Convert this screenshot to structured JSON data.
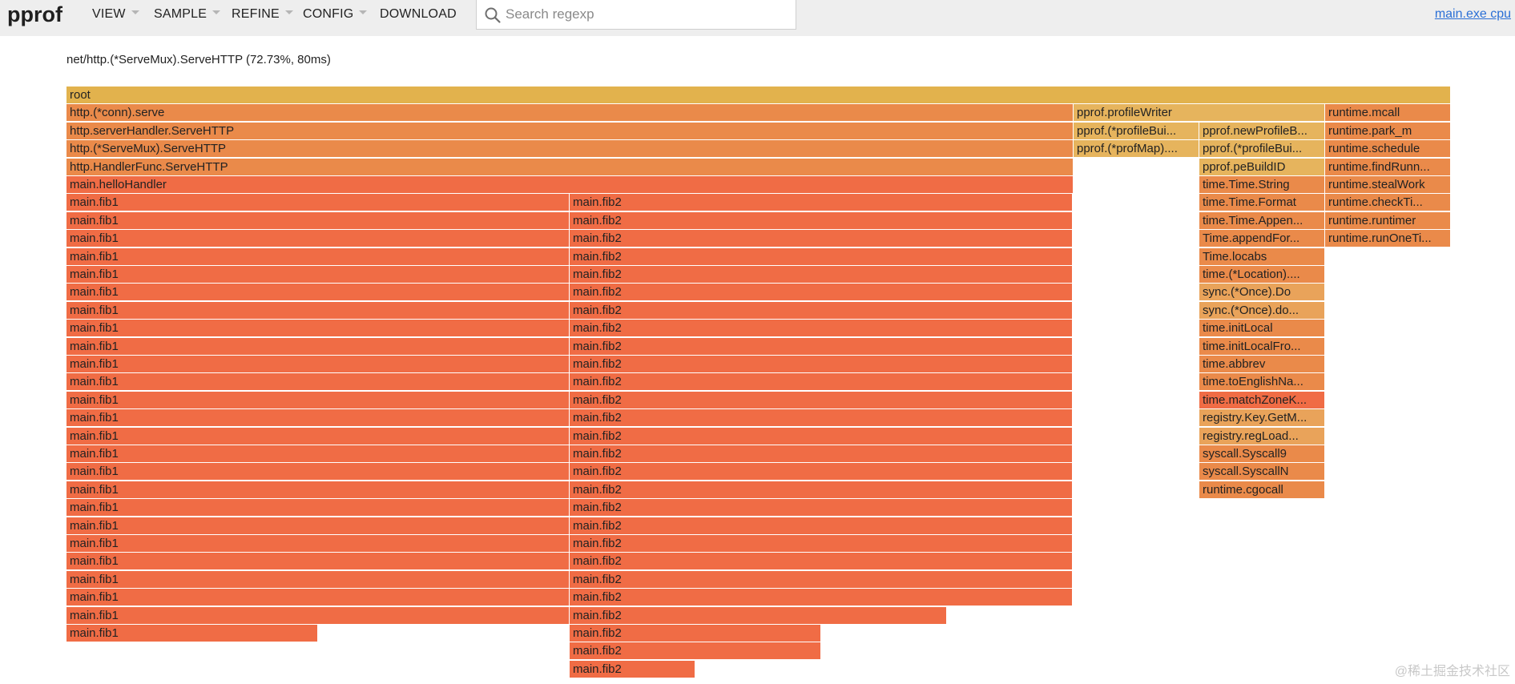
{
  "app": {
    "logo": "pprof",
    "profile_link": "main.exe cpu"
  },
  "menu": [
    {
      "label": "VIEW",
      "caret": true
    },
    {
      "label": "SAMPLE",
      "caret": true
    },
    {
      "label": "REFINE",
      "caret": true
    },
    {
      "label": "CONFIG",
      "caret": true
    },
    {
      "label": "DOWNLOAD",
      "caret": false
    }
  ],
  "search": {
    "placeholder": "Search regexp",
    "value": ""
  },
  "flame": {
    "title": "net/http.(*ServeMux).ServeHTTP (72.73%, 80ms)",
    "colors": {
      "root": "#e2b24d",
      "orange_dark": "#f06c45",
      "orange_mid": "#ea8a4a",
      "orange_light": "#e9a35a",
      "yellow": "#e6b45d"
    },
    "nodes": [
      {
        "name": "root",
        "depth": 0,
        "start": 0,
        "span": 1,
        "color": "#e2b24d"
      },
      {
        "name": "http.(*conn).serve",
        "depth": 1,
        "start": 0,
        "span": 0.7273,
        "color": "#ea8a4a"
      },
      {
        "name": "pprof.profileWriter",
        "depth": 1,
        "start": 0.7273,
        "span": 0.1818,
        "color": "#e6b45d"
      },
      {
        "name": "runtime.mcall",
        "depth": 1,
        "start": 0.9091,
        "span": 0.0909,
        "color": "#ea8a4a"
      },
      {
        "name": "http.serverHandler.ServeHTTP",
        "depth": 2,
        "start": 0,
        "span": 0.7273,
        "color": "#ea8a4a"
      },
      {
        "name": "pprof.(*profileBui...",
        "depth": 2,
        "start": 0.7273,
        "span": 0.0909,
        "color": "#e6b45d"
      },
      {
        "name": "pprof.newProfileB...",
        "depth": 2,
        "start": 0.8182,
        "span": 0.0909,
        "color": "#e6b45d"
      },
      {
        "name": "runtime.park_m",
        "depth": 2,
        "start": 0.9091,
        "span": 0.0909,
        "color": "#ea8a4a"
      },
      {
        "name": "http.(*ServeMux).ServeHTTP",
        "depth": 3,
        "start": 0,
        "span": 0.7273,
        "color": "#ea8a4a"
      },
      {
        "name": "pprof.(*profMap)....",
        "depth": 3,
        "start": 0.7273,
        "span": 0.0909,
        "color": "#e6b45d"
      },
      {
        "name": "pprof.(*profileBui...",
        "depth": 3,
        "start": 0.8182,
        "span": 0.0909,
        "color": "#e6b45d"
      },
      {
        "name": "runtime.schedule",
        "depth": 3,
        "start": 0.9091,
        "span": 0.0909,
        "color": "#ea8a4a"
      },
      {
        "name": "http.HandlerFunc.ServeHTTP",
        "depth": 4,
        "start": 0,
        "span": 0.7273,
        "color": "#ea8a4a"
      },
      {
        "name": "pprof.peBuildID",
        "depth": 4,
        "start": 0.8182,
        "span": 0.0909,
        "color": "#e6b45d"
      },
      {
        "name": "runtime.findRunn...",
        "depth": 4,
        "start": 0.9091,
        "span": 0.0909,
        "color": "#ea8a4a"
      },
      {
        "name": "main.helloHandler",
        "depth": 5,
        "start": 0,
        "span": 0.7273,
        "color": "#f06c45"
      },
      {
        "name": "time.Time.String",
        "depth": 5,
        "start": 0.8182,
        "span": 0.0909,
        "color": "#ea8a4a"
      },
      {
        "name": "runtime.stealWork",
        "depth": 5,
        "start": 0.9091,
        "span": 0.0909,
        "color": "#ea8a4a"
      },
      {
        "name": "time.Time.Format",
        "depth": 6,
        "start": 0.8182,
        "span": 0.0909,
        "color": "#ea8a4a"
      },
      {
        "name": "runtime.checkTi...",
        "depth": 6,
        "start": 0.9091,
        "span": 0.0909,
        "color": "#ea8a4a"
      },
      {
        "name": "time.Time.Appen...",
        "depth": 7,
        "start": 0.8182,
        "span": 0.0909,
        "color": "#ea8a4a"
      },
      {
        "name": "runtime.runtimer",
        "depth": 7,
        "start": 0.9091,
        "span": 0.0909,
        "color": "#ea8a4a"
      },
      {
        "name": "Time.appendFor...",
        "depth": 8,
        "start": 0.8182,
        "span": 0.0909,
        "color": "#ea8a4a"
      },
      {
        "name": "runtime.runOneTi...",
        "depth": 8,
        "start": 0.9091,
        "span": 0.0909,
        "color": "#ea8a4a"
      },
      {
        "name": "Time.locabs",
        "depth": 9,
        "start": 0.8182,
        "span": 0.0909,
        "color": "#ea8a4a"
      },
      {
        "name": "time.(*Location)....",
        "depth": 10,
        "start": 0.8182,
        "span": 0.0909,
        "color": "#ea8a4a"
      },
      {
        "name": "sync.(*Once).Do",
        "depth": 11,
        "start": 0.8182,
        "span": 0.0909,
        "color": "#e9a35a"
      },
      {
        "name": "sync.(*Once).do...",
        "depth": 12,
        "start": 0.8182,
        "span": 0.0909,
        "color": "#e9a35a"
      },
      {
        "name": "time.initLocal",
        "depth": 13,
        "start": 0.8182,
        "span": 0.0909,
        "color": "#ea8a4a"
      },
      {
        "name": "time.initLocalFro...",
        "depth": 14,
        "start": 0.8182,
        "span": 0.0909,
        "color": "#ea8a4a"
      },
      {
        "name": "time.abbrev",
        "depth": 15,
        "start": 0.8182,
        "span": 0.0909,
        "color": "#ea8a4a"
      },
      {
        "name": "time.toEnglishNa...",
        "depth": 16,
        "start": 0.8182,
        "span": 0.0909,
        "color": "#ea8a4a"
      },
      {
        "name": "time.matchZoneK...",
        "depth": 17,
        "start": 0.8182,
        "span": 0.0909,
        "color": "#f06c45"
      },
      {
        "name": "registry.Key.GetM...",
        "depth": 18,
        "start": 0.8182,
        "span": 0.0909,
        "color": "#e9a35a"
      },
      {
        "name": "registry.regLoad...",
        "depth": 19,
        "start": 0.8182,
        "span": 0.0909,
        "color": "#e9a35a"
      },
      {
        "name": "syscall.Syscall9",
        "depth": 20,
        "start": 0.8182,
        "span": 0.0909,
        "color": "#ea8a4a"
      },
      {
        "name": "syscall.SyscallN",
        "depth": 21,
        "start": 0.8182,
        "span": 0.0909,
        "color": "#ea8a4a"
      },
      {
        "name": "runtime.cgocall",
        "depth": 22,
        "start": 0.8182,
        "span": 0.0909,
        "color": "#ea8a4a"
      }
    ],
    "fib_columns": [
      {
        "name": "main.fib1",
        "start": 0,
        "spans_by_depth": [
          0.3636,
          0.3636,
          0.3636,
          0.3636,
          0.3636,
          0.3636,
          0.3636,
          0.3636,
          0.3636,
          0.3636,
          0.3636,
          0.3636,
          0.3636,
          0.3636,
          0.3636,
          0.3636,
          0.3636,
          0.3636,
          0.3636,
          0.3636,
          0.3636,
          0.3636,
          0.3636,
          0.3636,
          0.1818
        ],
        "color": "#f06c45"
      },
      {
        "name": "main.fib2",
        "start": 0.3636,
        "spans_by_depth": [
          0.3636,
          0.3636,
          0.3636,
          0.3636,
          0.3636,
          0.3636,
          0.3636,
          0.3636,
          0.3636,
          0.3636,
          0.3636,
          0.3636,
          0.3636,
          0.3636,
          0.3636,
          0.3636,
          0.3636,
          0.3636,
          0.3636,
          0.3636,
          0.3636,
          0.3636,
          0.3636,
          0.2727,
          0.1818,
          0.1818,
          0.0909
        ],
        "color": "#f06c45"
      }
    ]
  },
  "watermark": "@稀土掘金技术社区"
}
